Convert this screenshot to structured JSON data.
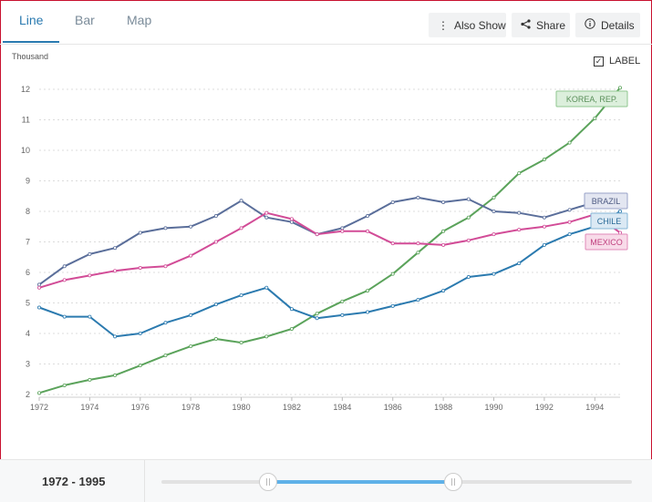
{
  "tabs": [
    {
      "label": "Line"
    },
    {
      "label": "Bar"
    },
    {
      "label": "Map"
    }
  ],
  "toolbar": {
    "also_show": "Also Show",
    "share": "Share",
    "details": "Details"
  },
  "label_toggle": {
    "label": "LABEL",
    "checked": true
  },
  "range": {
    "start": "1972",
    "sep": "-",
    "end": "1995"
  },
  "chart_data": {
    "type": "line",
    "unit_label": "Thousand",
    "ylim": [
      2,
      12
    ],
    "y_ticks": [
      2,
      3,
      4,
      5,
      6,
      7,
      8,
      9,
      10,
      11,
      12
    ],
    "x_ticks": [
      1972,
      1974,
      1976,
      1978,
      1980,
      1982,
      1984,
      1986,
      1988,
      1990,
      1992,
      1994
    ],
    "x": [
      1972,
      1973,
      1974,
      1975,
      1976,
      1977,
      1978,
      1979,
      1980,
      1981,
      1982,
      1983,
      1984,
      1985,
      1986,
      1987,
      1988,
      1989,
      1990,
      1991,
      1992,
      1993,
      1994,
      1995
    ],
    "grid": true,
    "series": [
      {
        "name": "KOREA, REP.",
        "color": "#5ba35b",
        "label_bg": "#dcefdc",
        "label_border": "#8fc78f",
        "label_text": "#5a8f5a",
        "values": [
          2.05,
          2.3,
          2.48,
          2.63,
          2.95,
          3.28,
          3.58,
          3.82,
          3.7,
          3.9,
          4.15,
          4.65,
          5.05,
          5.4,
          5.95,
          6.65,
          7.35,
          7.8,
          8.45,
          9.25,
          9.7,
          10.25,
          11.05,
          12.05
        ]
      },
      {
        "name": "BRAZIL",
        "color": "#5a6e9a",
        "label_bg": "#e3e6f1",
        "label_border": "#98a3c8",
        "label_text": "#4d5a82",
        "values": [
          5.6,
          6.2,
          6.6,
          6.8,
          7.3,
          7.45,
          7.5,
          7.85,
          8.35,
          7.8,
          7.65,
          7.25,
          7.45,
          7.85,
          8.3,
          8.45,
          8.3,
          8.4,
          8.0,
          7.95,
          7.8,
          8.05,
          8.3,
          8.25
        ]
      },
      {
        "name": "CHILE",
        "color": "#2b7aaf",
        "label_bg": "#dbe9f4",
        "label_border": "#86b5d6",
        "label_text": "#2b6b98",
        "values": [
          4.85,
          4.55,
          4.55,
          3.9,
          4.0,
          4.35,
          4.6,
          4.95,
          5.25,
          5.5,
          4.8,
          4.5,
          4.6,
          4.7,
          4.9,
          5.1,
          5.4,
          5.85,
          5.95,
          6.3,
          6.9,
          7.25,
          7.5,
          8.0
        ]
      },
      {
        "name": "MEXICO",
        "color": "#d24c97",
        "label_bg": "#f8dbe9",
        "label_border": "#e08ab8",
        "label_text": "#c0407f",
        "values": [
          5.5,
          5.75,
          5.9,
          6.05,
          6.15,
          6.2,
          6.55,
          7.0,
          7.45,
          7.95,
          7.75,
          7.25,
          7.35,
          7.35,
          6.95,
          6.95,
          6.9,
          7.05,
          7.25,
          7.4,
          7.5,
          7.65,
          7.9,
          7.3
        ]
      }
    ]
  }
}
